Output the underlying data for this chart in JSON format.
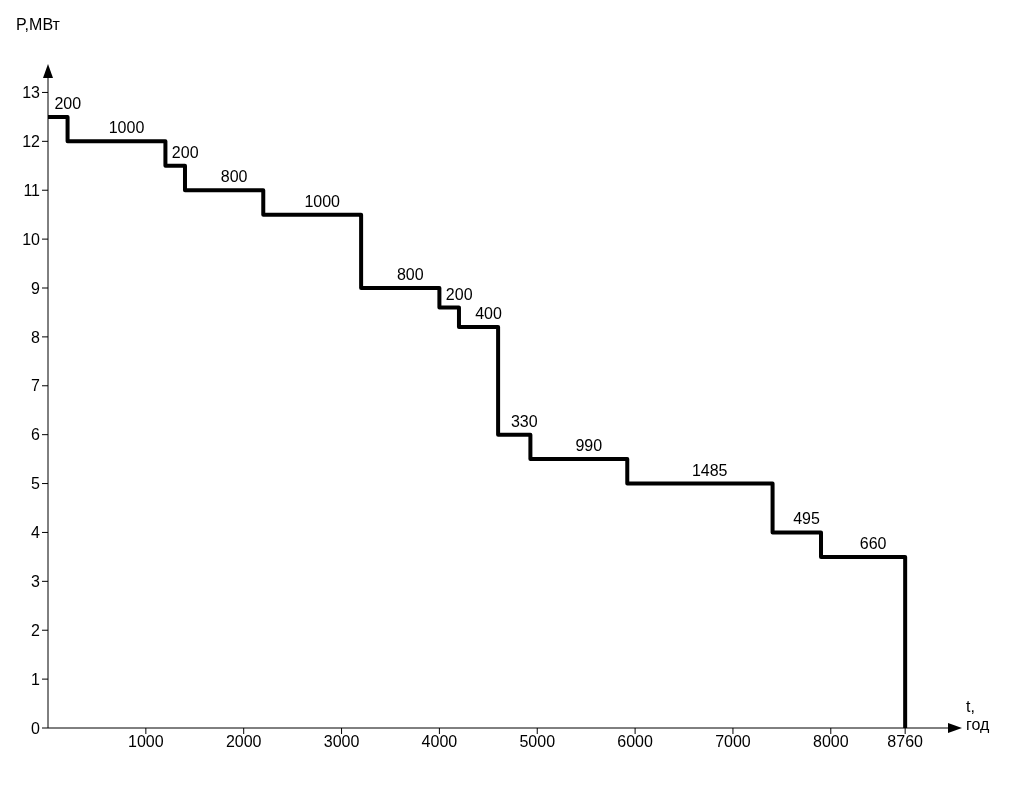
{
  "chart_data": {
    "type": "step",
    "xlabel": "t, год",
    "ylabel": "P,МВт",
    "xlim": [
      0,
      9300
    ],
    "ylim": [
      0,
      13.5
    ],
    "xticks": [
      1000,
      2000,
      3000,
      4000,
      5000,
      6000,
      7000,
      8000,
      8760
    ],
    "yticks": [
      0,
      1,
      2,
      3,
      4,
      5,
      6,
      7,
      8,
      9,
      10,
      11,
      12,
      13
    ],
    "series": [
      {
        "color": "#000000",
        "x": [
          0,
          200,
          1200,
          1400,
          2200,
          3200,
          4000,
          4200,
          4600,
          4930,
          5920,
          7405,
          7900,
          8760,
          8760
        ],
        "values": [
          12.5,
          12,
          11.5,
          11,
          10.5,
          9,
          8.6,
          8.2,
          6,
          5.5,
          5,
          4,
          3.5,
          3.5,
          0
        ]
      }
    ],
    "annotations": [
      {
        "text": "200",
        "x": 100,
        "y": 12.5
      },
      {
        "text": "1000",
        "x": 700,
        "y": 12
      },
      {
        "text": "200",
        "x": 1300,
        "y": 11.5
      },
      {
        "text": "800",
        "x": 1800,
        "y": 11
      },
      {
        "text": "1000",
        "x": 2700,
        "y": 10.5
      },
      {
        "text": "800",
        "x": 3600,
        "y": 9
      },
      {
        "text": "200",
        "x": 4100,
        "y": 8.6
      },
      {
        "text": "400",
        "x": 4400,
        "y": 8.2
      },
      {
        "text": "330",
        "x": 4765,
        "y": 6
      },
      {
        "text": "990",
        "x": 5425,
        "y": 5.5
      },
      {
        "text": "1485",
        "x": 6660,
        "y": 5
      },
      {
        "text": "495",
        "x": 7650,
        "y": 4
      },
      {
        "text": "660",
        "x": 8330,
        "y": 3.5
      }
    ]
  }
}
